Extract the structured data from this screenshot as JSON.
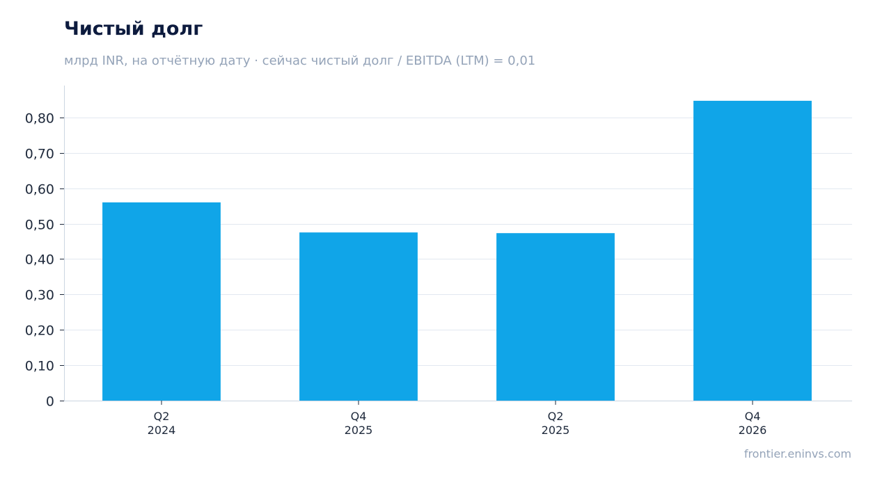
{
  "chart_data": {
    "type": "bar",
    "title": "Чистый долг",
    "subtitle": "млрд INR, на отчётную дату · сейчас чистый долг / EBITDA (LTM) = 0,01",
    "categories": [
      [
        "Q2",
        "2024"
      ],
      [
        "Q4",
        "2025"
      ],
      [
        "Q2",
        "2025"
      ],
      [
        "Q4",
        "2026"
      ]
    ],
    "values": [
      0.56,
      0.475,
      0.473,
      0.847
    ],
    "ylim": [
      0,
      0.89
    ],
    "yticks": [
      0,
      0.1,
      0.2,
      0.3,
      0.4,
      0.5,
      0.6,
      0.7,
      0.8
    ],
    "ytick_labels": [
      "0",
      "0,10",
      "0,20",
      "0,30",
      "0,40",
      "0,50",
      "0,60",
      "0,70",
      "0,80"
    ],
    "grid": true,
    "xlabel": "",
    "ylabel": "",
    "bar_color": "#10a5e8",
    "grid_color": "#e2e8f0",
    "axis_color": "#cbd5e1"
  },
  "source": "frontier.eninvs.com"
}
